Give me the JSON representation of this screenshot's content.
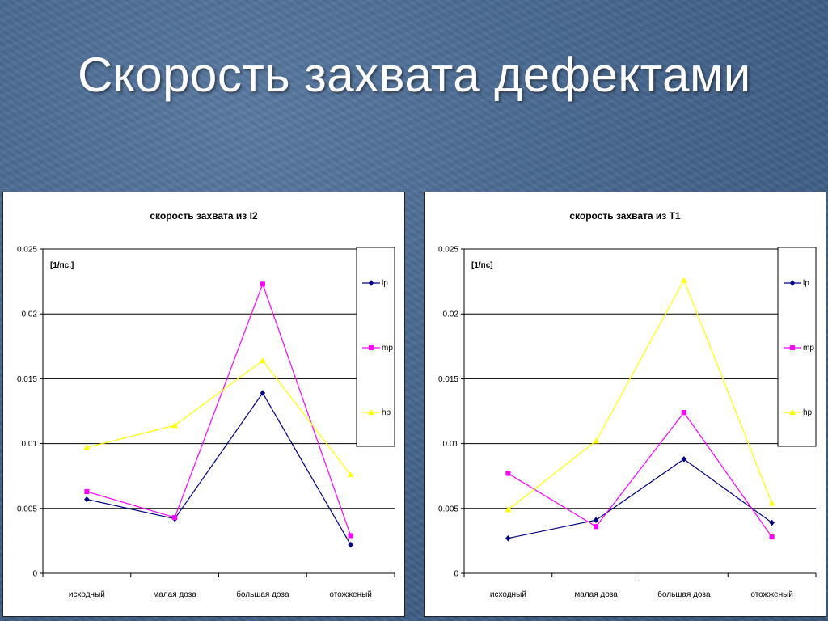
{
  "slide": {
    "title": "Скорость захвата дефектами"
  },
  "colors": {
    "lp": "#000080",
    "mp": "#ff00ff",
    "hp": "#ffff00"
  },
  "chart_data": [
    {
      "type": "line",
      "title": "скорость захвата из I2",
      "unit_label": "[1/пс.]",
      "categories": [
        "исходный",
        "малая доза",
        "большая доза",
        "отожженый"
      ],
      "ylim": [
        0,
        0.025
      ],
      "yticks": [
        "0",
        "0.005",
        "0.01",
        "0.015",
        "0.02",
        "0.025"
      ],
      "grid": true,
      "legend_position": "right",
      "series": [
        {
          "name": "lp",
          "marker": "diamond",
          "values": [
            0.0057,
            0.0042,
            0.0139,
            0.0022
          ]
        },
        {
          "name": "mp",
          "marker": "square",
          "values": [
            0.0063,
            0.0043,
            0.0223,
            0.0029
          ]
        },
        {
          "name": "hp",
          "marker": "triangle",
          "values": [
            0.0097,
            0.0114,
            0.0164,
            0.0076
          ]
        }
      ]
    },
    {
      "type": "line",
      "title": "скорость захвата из T1",
      "unit_label": "[1/пс]",
      "categories": [
        "исходный",
        "малая доза",
        "большая доза",
        "отожженый"
      ],
      "ylim": [
        0,
        0.025
      ],
      "yticks": [
        "0",
        "0.005",
        "0.01",
        "0.015",
        "0.02",
        "0.025"
      ],
      "grid": true,
      "legend_position": "right",
      "series": [
        {
          "name": "lp",
          "marker": "diamond",
          "values": [
            0.0027,
            0.0041,
            0.0088,
            0.0039
          ]
        },
        {
          "name": "mp",
          "marker": "square",
          "values": [
            0.0077,
            0.0036,
            0.0124,
            0.0028
          ]
        },
        {
          "name": "hp",
          "marker": "triangle",
          "values": [
            0.0049,
            0.0102,
            0.0226,
            0.0054
          ]
        }
      ]
    }
  ]
}
